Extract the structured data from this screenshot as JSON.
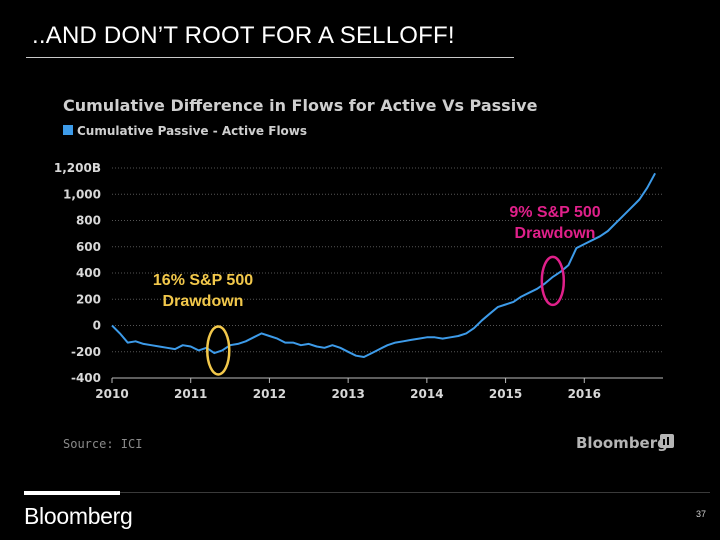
{
  "slide": {
    "title": "..AND DON’T ROOT FOR A SELLOFF!",
    "footer_logo": "Bloomberg",
    "page_number": "37"
  },
  "colors": {
    "background": "#000000",
    "line": "#3d9be9",
    "legend_swatch": "#3d9be9",
    "annotation_yellow": "#f2c84b",
    "annotation_magenta": "#e0208a"
  },
  "chart_data": {
    "type": "line",
    "title": "Cumulative Difference in Flows for Active Vs Passive",
    "legend": [
      "Cumulative Passive - Active Flows"
    ],
    "ylabel": "",
    "xlabel": "",
    "ylim": [
      -400,
      1200
    ],
    "xlim": [
      2010.0,
      2017.0
    ],
    "grid": true,
    "y_ticks": [
      {
        "value": 1200,
        "label": "1,200B"
      },
      {
        "value": 1000,
        "label": "1,000"
      },
      {
        "value": 800,
        "label": "800"
      },
      {
        "value": 600,
        "label": "600"
      },
      {
        "value": 400,
        "label": "400"
      },
      {
        "value": 200,
        "label": "200"
      },
      {
        "value": 0,
        "label": "0"
      },
      {
        "value": -200,
        "label": "-200"
      },
      {
        "value": -400,
        "label": "-400"
      }
    ],
    "x_ticks": [
      {
        "value": 2010,
        "label": "2010"
      },
      {
        "value": 2011,
        "label": "2011"
      },
      {
        "value": 2012,
        "label": "2012"
      },
      {
        "value": 2013,
        "label": "2013"
      },
      {
        "value": 2014,
        "label": "2014"
      },
      {
        "value": 2015,
        "label": "2015"
      },
      {
        "value": 2016,
        "label": "2016"
      }
    ],
    "series": [
      {
        "name": "Cumulative Passive - Active Flows",
        "x": [
          2010.0,
          2010.1,
          2010.2,
          2010.3,
          2010.4,
          2010.5,
          2010.6,
          2010.7,
          2010.8,
          2010.9,
          2011.0,
          2011.1,
          2011.2,
          2011.3,
          2011.4,
          2011.5,
          2011.6,
          2011.7,
          2011.8,
          2011.9,
          2012.0,
          2012.1,
          2012.2,
          2012.3,
          2012.4,
          2012.5,
          2012.6,
          2012.7,
          2012.8,
          2012.9,
          2013.0,
          2013.1,
          2013.2,
          2013.3,
          2013.4,
          2013.5,
          2013.6,
          2013.7,
          2013.8,
          2013.9,
          2014.0,
          2014.1,
          2014.2,
          2014.3,
          2014.4,
          2014.5,
          2014.6,
          2014.7,
          2014.8,
          2014.9,
          2015.0,
          2015.1,
          2015.2,
          2015.3,
          2015.4,
          2015.5,
          2015.6,
          2015.7,
          2015.8,
          2015.9,
          2016.0,
          2016.1,
          2016.2,
          2016.3,
          2016.4,
          2016.5,
          2016.6,
          2016.7,
          2016.8,
          2016.9
        ],
        "values": [
          0,
          -60,
          -130,
          -120,
          -140,
          -150,
          -160,
          -170,
          -180,
          -150,
          -160,
          -190,
          -170,
          -210,
          -190,
          -150,
          -140,
          -120,
          -90,
          -60,
          -80,
          -100,
          -130,
          -130,
          -150,
          -140,
          -160,
          -170,
          -150,
          -170,
          -200,
          -230,
          -240,
          -210,
          -180,
          -150,
          -130,
          -120,
          -110,
          -100,
          -90,
          -90,
          -100,
          -90,
          -80,
          -60,
          -20,
          40,
          90,
          140,
          160,
          180,
          220,
          250,
          280,
          320,
          370,
          410,
          460,
          590,
          620,
          650,
          680,
          720,
          780,
          840,
          900,
          960,
          1050,
          1160
        ]
      }
    ],
    "annotations": [
      {
        "text_lines": [
          "16% S&P 500",
          "Drawdown"
        ],
        "color": "annotation_yellow",
        "marker_x": 2011.35,
        "marker_y": -190
      },
      {
        "text_lines": [
          "9% S&P 500",
          "Drawdown"
        ],
        "color": "annotation_magenta",
        "marker_x": 2015.6,
        "marker_y": 340
      }
    ],
    "source": "Source: ICI",
    "watermark": "Bloomberg"
  }
}
